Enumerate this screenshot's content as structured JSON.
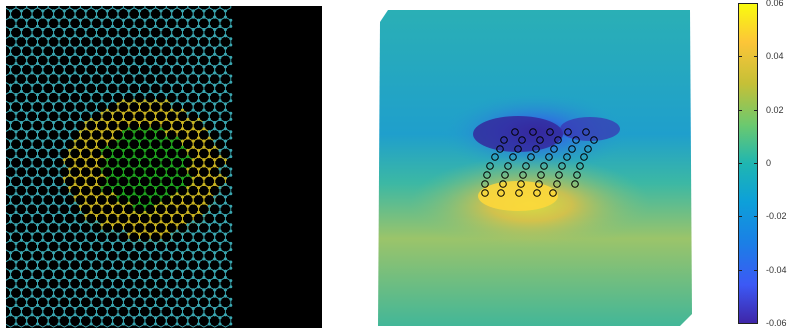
{
  "figure": {
    "left_panel": {
      "background": "#000000",
      "colors": {
        "outer_lattice": "#3aa6b0",
        "middle_ring": "#c9b320",
        "inner_core": "#1fa51f"
      }
    },
    "right_panel": {
      "colors": {
        "marker": "#000000"
      }
    },
    "colorbar": {
      "min": -0.06,
      "max": 0.06,
      "colormap": "parula",
      "ticks": [
        "0.06",
        "0.04",
        "0.02",
        "0",
        "-0.02",
        "-0.04",
        "-0.06"
      ]
    }
  }
}
